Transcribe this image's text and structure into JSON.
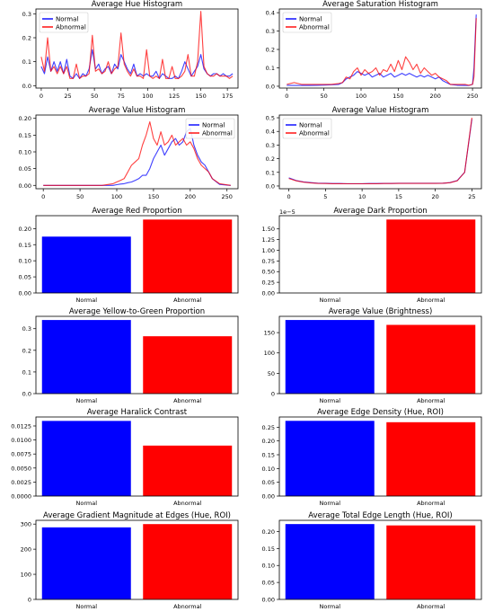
{
  "colors": {
    "normal": "#0000ff",
    "abnormal": "#ff0000"
  },
  "chart_data": [
    {
      "type": "line",
      "title": "Average Hue Histogram",
      "xlim": [
        -5,
        185
      ],
      "ylim": [
        -0.01,
        0.32
      ],
      "xticks": [
        0,
        25,
        50,
        75,
        100,
        125,
        150,
        175
      ],
      "yticks": [
        0.0,
        0.1,
        0.2,
        0.3
      ],
      "ytick_labels": [
        "0.0",
        "0.1",
        "0.2",
        "0.3"
      ],
      "legend": "top-left",
      "series": [
        {
          "name": "Normal",
          "x": [
            0,
            3,
            6,
            9,
            12,
            15,
            18,
            21,
            24,
            27,
            30,
            33,
            36,
            39,
            42,
            45,
            48,
            51,
            54,
            57,
            60,
            63,
            66,
            69,
            72,
            75,
            78,
            81,
            84,
            87,
            90,
            93,
            96,
            99,
            102,
            105,
            108,
            111,
            114,
            117,
            120,
            123,
            126,
            129,
            132,
            135,
            138,
            141,
            144,
            147,
            150,
            153,
            156,
            159,
            162,
            165,
            168,
            171,
            174,
            177,
            180
          ],
          "y": [
            0.08,
            0.05,
            0.12,
            0.06,
            0.1,
            0.06,
            0.1,
            0.05,
            0.11,
            0.04,
            0.03,
            0.05,
            0.03,
            0.05,
            0.04,
            0.07,
            0.15,
            0.07,
            0.09,
            0.05,
            0.07,
            0.08,
            0.05,
            0.09,
            0.07,
            0.13,
            0.1,
            0.07,
            0.05,
            0.09,
            0.04,
            0.05,
            0.04,
            0.05,
            0.04,
            0.04,
            0.06,
            0.03,
            0.05,
            0.04,
            0.03,
            0.03,
            0.04,
            0.03,
            0.06,
            0.1,
            0.07,
            0.04,
            0.06,
            0.08,
            0.13,
            0.07,
            0.05,
            0.04,
            0.05,
            0.05,
            0.04,
            0.05,
            0.04,
            0.04,
            0.05
          ]
        },
        {
          "name": "Abnormal",
          "x": [
            0,
            3,
            6,
            9,
            12,
            15,
            18,
            21,
            24,
            27,
            30,
            33,
            36,
            39,
            42,
            45,
            48,
            51,
            54,
            57,
            60,
            63,
            66,
            69,
            72,
            75,
            78,
            81,
            84,
            87,
            90,
            93,
            96,
            99,
            102,
            105,
            108,
            111,
            114,
            117,
            120,
            123,
            126,
            129,
            132,
            135,
            138,
            141,
            144,
            147,
            150,
            153,
            156,
            159,
            162,
            165,
            168,
            171,
            174,
            177,
            180
          ],
          "y": [
            0.12,
            0.06,
            0.2,
            0.06,
            0.08,
            0.05,
            0.08,
            0.05,
            0.08,
            0.03,
            0.03,
            0.09,
            0.03,
            0.04,
            0.04,
            0.05,
            0.21,
            0.06,
            0.07,
            0.05,
            0.06,
            0.1,
            0.05,
            0.07,
            0.08,
            0.22,
            0.09,
            0.06,
            0.04,
            0.07,
            0.04,
            0.04,
            0.03,
            0.15,
            0.04,
            0.03,
            0.04,
            0.03,
            0.11,
            0.03,
            0.03,
            0.08,
            0.03,
            0.03,
            0.04,
            0.06,
            0.13,
            0.04,
            0.04,
            0.1,
            0.31,
            0.08,
            0.05,
            0.04,
            0.04,
            0.05,
            0.04,
            0.04,
            0.04,
            0.03,
            0.04
          ]
        }
      ]
    },
    {
      "type": "line",
      "title": "Average Saturation Histogram",
      "xlim": [
        -10,
        262
      ],
      "ylim": [
        -0.01,
        0.42
      ],
      "xticks": [
        0,
        50,
        100,
        150,
        200,
        250
      ],
      "yticks": [
        0.0,
        0.1,
        0.2,
        0.3,
        0.4
      ],
      "ytick_labels": [
        "0.0",
        "0.1",
        "0.2",
        "0.3",
        "0.4"
      ],
      "legend": "top-left",
      "series": [
        {
          "name": "Normal",
          "x": [
            0,
            10,
            20,
            30,
            40,
            50,
            60,
            70,
            75,
            80,
            85,
            90,
            95,
            100,
            105,
            110,
            115,
            120,
            125,
            130,
            135,
            140,
            145,
            150,
            155,
            160,
            165,
            170,
            175,
            180,
            185,
            190,
            195,
            200,
            205,
            210,
            215,
            220,
            230,
            240,
            245,
            250,
            252,
            255
          ],
          "y": [
            0.005,
            0.004,
            0.004,
            0.004,
            0.005,
            0.006,
            0.008,
            0.01,
            0.02,
            0.04,
            0.05,
            0.06,
            0.08,
            0.07,
            0.06,
            0.07,
            0.05,
            0.06,
            0.07,
            0.05,
            0.06,
            0.07,
            0.05,
            0.06,
            0.07,
            0.06,
            0.07,
            0.06,
            0.05,
            0.06,
            0.05,
            0.06,
            0.05,
            0.04,
            0.05,
            0.03,
            0.02,
            0.01,
            0.005,
            0.004,
            0.004,
            0.01,
            0.1,
            0.39
          ]
        },
        {
          "name": "Abnormal",
          "x": [
            0,
            10,
            20,
            30,
            40,
            50,
            60,
            70,
            75,
            80,
            85,
            90,
            95,
            100,
            105,
            110,
            115,
            120,
            125,
            130,
            135,
            140,
            145,
            150,
            155,
            160,
            165,
            170,
            175,
            180,
            185,
            190,
            195,
            200,
            205,
            210,
            215,
            220,
            230,
            240,
            245,
            250,
            252,
            255
          ],
          "y": [
            0.01,
            0.02,
            0.01,
            0.01,
            0.01,
            0.01,
            0.01,
            0.015,
            0.02,
            0.05,
            0.04,
            0.08,
            0.1,
            0.06,
            0.09,
            0.07,
            0.08,
            0.1,
            0.06,
            0.09,
            0.08,
            0.12,
            0.08,
            0.14,
            0.09,
            0.16,
            0.13,
            0.09,
            0.12,
            0.07,
            0.1,
            0.08,
            0.06,
            0.07,
            0.05,
            0.04,
            0.03,
            0.01,
            0.01,
            0.01,
            0.005,
            0.01,
            0.05,
            0.37
          ]
        }
      ]
    },
    {
      "type": "line",
      "title": "Average Value Histogram",
      "xlim": [
        -10,
        265
      ],
      "ylim": [
        -0.01,
        0.21
      ],
      "xticks": [
        0,
        50,
        100,
        150,
        200,
        250
      ],
      "yticks": [
        0.0,
        0.05,
        0.1,
        0.15,
        0.2
      ],
      "ytick_labels": [
        "0.00",
        "0.05",
        "0.10",
        "0.15",
        "0.20"
      ],
      "legend": "top-right",
      "series": [
        {
          "name": "Normal",
          "x": [
            0,
            20,
            40,
            60,
            80,
            95,
            100,
            105,
            110,
            115,
            120,
            125,
            130,
            135,
            140,
            145,
            150,
            155,
            160,
            165,
            170,
            175,
            180,
            185,
            190,
            195,
            200,
            205,
            210,
            215,
            220,
            225,
            230,
            240,
            255
          ],
          "y": [
            0.0,
            0.0,
            0.0,
            0.0,
            0.0,
            0.0,
            0.002,
            0.004,
            0.005,
            0.008,
            0.01,
            0.015,
            0.02,
            0.03,
            0.03,
            0.05,
            0.08,
            0.1,
            0.12,
            0.09,
            0.11,
            0.13,
            0.14,
            0.12,
            0.13,
            0.16,
            0.17,
            0.12,
            0.09,
            0.07,
            0.06,
            0.04,
            0.02,
            0.003,
            0.0
          ]
        },
        {
          "name": "Abnormal",
          "x": [
            0,
            20,
            40,
            60,
            80,
            95,
            100,
            105,
            110,
            115,
            120,
            125,
            130,
            135,
            140,
            145,
            150,
            155,
            160,
            165,
            170,
            175,
            180,
            185,
            190,
            195,
            200,
            205,
            210,
            215,
            220,
            225,
            230,
            240,
            255
          ],
          "y": [
            0.0,
            0.0,
            0.0,
            0.0,
            0.0,
            0.005,
            0.01,
            0.015,
            0.02,
            0.04,
            0.06,
            0.07,
            0.08,
            0.12,
            0.15,
            0.19,
            0.14,
            0.12,
            0.16,
            0.12,
            0.13,
            0.15,
            0.12,
            0.13,
            0.14,
            0.12,
            0.13,
            0.11,
            0.08,
            0.06,
            0.05,
            0.04,
            0.02,
            0.005,
            0.0
          ]
        }
      ]
    },
    {
      "type": "line",
      "title": "Average Value Histogram",
      "xlim": [
        -1.3,
        26.3
      ],
      "ylim": [
        -0.02,
        0.52
      ],
      "xticks": [
        0,
        5,
        10,
        15,
        20,
        25
      ],
      "yticks": [
        0.0,
        0.1,
        0.2,
        0.3,
        0.4,
        0.5
      ],
      "ytick_labels": [
        "0.0",
        "0.1",
        "0.2",
        "0.3",
        "0.4",
        "0.5"
      ],
      "legend": "top-left",
      "series": [
        {
          "name": "Normal",
          "x": [
            0,
            1,
            2,
            3,
            4,
            5,
            6,
            7,
            8,
            9,
            10,
            11,
            12,
            13,
            14,
            15,
            16,
            17,
            18,
            19,
            20,
            21,
            22,
            23,
            24,
            25
          ],
          "y": [
            0.06,
            0.04,
            0.03,
            0.025,
            0.02,
            0.02,
            0.018,
            0.018,
            0.017,
            0.017,
            0.017,
            0.018,
            0.018,
            0.019,
            0.019,
            0.02,
            0.02,
            0.02,
            0.02,
            0.02,
            0.02,
            0.02,
            0.025,
            0.04,
            0.1,
            0.49
          ]
        },
        {
          "name": "Abnormal",
          "x": [
            0,
            1,
            2,
            3,
            4,
            5,
            6,
            7,
            8,
            9,
            10,
            11,
            12,
            13,
            14,
            15,
            16,
            17,
            18,
            19,
            20,
            21,
            22,
            23,
            24,
            25
          ],
          "y": [
            0.055,
            0.038,
            0.028,
            0.022,
            0.019,
            0.018,
            0.017,
            0.017,
            0.016,
            0.016,
            0.016,
            0.017,
            0.017,
            0.018,
            0.018,
            0.019,
            0.019,
            0.019,
            0.019,
            0.019,
            0.019,
            0.02,
            0.024,
            0.038,
            0.1,
            0.5
          ]
        }
      ]
    },
    {
      "type": "bar",
      "title": "Average Red Proportion",
      "categories": [
        "Normal",
        "Abnormal"
      ],
      "values": [
        0.175,
        0.228
      ],
      "ylim": [
        0,
        0.24
      ],
      "yticks": [
        0,
        0.05,
        0.1,
        0.15,
        0.2
      ],
      "ytick_labels": [
        "0.00",
        "0.05",
        "0.10",
        "0.15",
        "0.20"
      ]
    },
    {
      "type": "bar",
      "title": "Average Dark Proportion",
      "categories": [
        "Normal",
        "Abnormal"
      ],
      "values": [
        0.0,
        1.72
      ],
      "offset_label": "1e−5",
      "ylim": [
        0,
        1.81
      ],
      "yticks": [
        0,
        0.25,
        0.5,
        0.75,
        1.0,
        1.25,
        1.5
      ],
      "ytick_labels": [
        "0.00",
        "0.25",
        "0.50",
        "0.75",
        "1.00",
        "1.25",
        "1.50"
      ]
    },
    {
      "type": "bar",
      "title": "Average Yellow-to-Green Proportion",
      "categories": [
        "Normal",
        "Abnormal"
      ],
      "values": [
        0.34,
        0.265
      ],
      "ylim": [
        0,
        0.357
      ],
      "yticks": [
        0,
        0.1,
        0.2,
        0.3
      ],
      "ytick_labels": [
        "0.0",
        "0.1",
        "0.2",
        "0.3"
      ]
    },
    {
      "type": "bar",
      "title": "Average Value (Brightness)",
      "categories": [
        "Normal",
        "Abnormal"
      ],
      "values": [
        181,
        169
      ],
      "ylim": [
        0,
        190
      ],
      "yticks": [
        0,
        50,
        100,
        150
      ],
      "ytick_labels": [
        "0",
        "50",
        "100",
        "150"
      ]
    },
    {
      "type": "bar",
      "title": "Average Haralick Contrast",
      "categories": [
        "Normal",
        "Abnormal"
      ],
      "values": [
        0.0134,
        0.009
      ],
      "ylim": [
        0,
        0.0141
      ],
      "yticks": [
        0,
        0.0025,
        0.005,
        0.0075,
        0.01,
        0.0125
      ],
      "ytick_labels": [
        "0.0000",
        "0.0025",
        "0.0050",
        "0.0075",
        "0.0100",
        "0.0125"
      ]
    },
    {
      "type": "bar",
      "title": "Average Edge Density (Hue, ROI)",
      "categories": [
        "Normal",
        "Abnormal"
      ],
      "values": [
        0.273,
        0.268
      ],
      "ylim": [
        0,
        0.287
      ],
      "yticks": [
        0,
        0.05,
        0.1,
        0.15,
        0.2,
        0.25
      ],
      "ytick_labels": [
        "0.00",
        "0.05",
        "0.10",
        "0.15",
        "0.20",
        "0.25"
      ]
    },
    {
      "type": "bar",
      "title": "Average Gradient Magnitude at Edges (Hue, ROI)",
      "categories": [
        "Normal",
        "Abnormal"
      ],
      "values": [
        287,
        300
      ],
      "ylim": [
        0,
        315
      ],
      "yticks": [
        0,
        100,
        200,
        300
      ],
      "ytick_labels": [
        "0",
        "100",
        "200",
        "300"
      ]
    },
    {
      "type": "bar",
      "title": "Average Total Edge Length (Hue, ROI)",
      "categories": [
        "Normal",
        "Abnormal"
      ],
      "values": [
        0.222,
        0.218
      ],
      "ylim": [
        0,
        0.233
      ],
      "yticks": [
        0,
        0.05,
        0.1,
        0.15,
        0.2
      ],
      "ytick_labels": [
        "0.00",
        "0.05",
        "0.10",
        "0.15",
        "0.20"
      ]
    }
  ]
}
